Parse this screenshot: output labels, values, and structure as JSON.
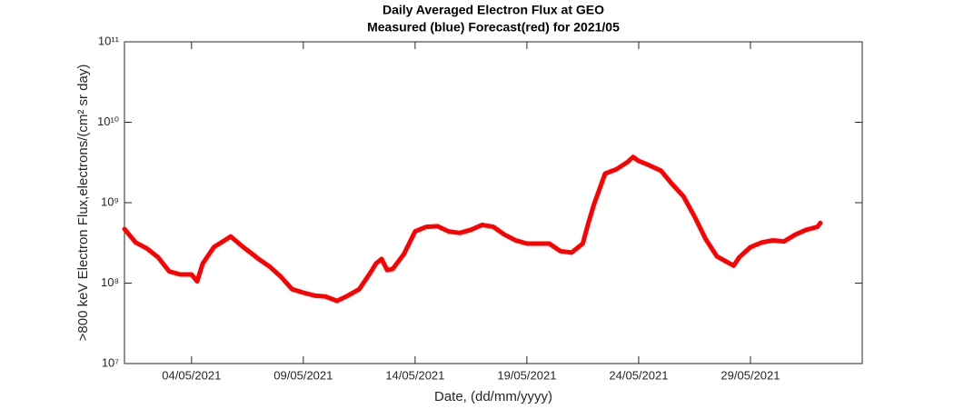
{
  "chart_data": {
    "type": "line",
    "title": "Daily Averaged Electron Flux at GEO",
    "subtitle": "Measured (blue) Forecast(red) for 2021/05",
    "x_label": "Date, (dd/mm/yyyy)",
    "y_label": ">800 keV Electron Flux,electrons/(cm² sr day)",
    "log_y": true,
    "grid": false,
    "color": "#ff0000",
    "xlim": [
      "2021-05-01T00:00",
      "2021-06-03T00:00"
    ],
    "xticks": [
      {
        "value": "2021-05-04T00:00",
        "label": "04/05/2021"
      },
      {
        "value": "2021-05-09T00:00",
        "label": "09/05/2021"
      },
      {
        "value": "2021-05-14T00:00",
        "label": "14/05/2021"
      },
      {
        "value": "2021-05-19T00:00",
        "label": "19/05/2021"
      },
      {
        "value": "2021-05-24T00:00",
        "label": "24/05/2021"
      },
      {
        "value": "2021-05-29T00:00",
        "label": "29/05/2021"
      }
    ],
    "ylim": [
      10000000,
      100000000000
    ],
    "yticks": [
      {
        "value": 10000000,
        "label": "10⁷"
      },
      {
        "value": 100000000,
        "label": "10⁸"
      },
      {
        "value": 1000000000,
        "label": "10⁹"
      },
      {
        "value": 10000000000,
        "label": "10¹⁰"
      },
      {
        "value": 100000000000,
        "label": "10¹¹"
      }
    ],
    "x": [
      "2021-05-01T00:00",
      "2021-05-01T12:00",
      "2021-05-02T00:00",
      "2021-05-02T12:00",
      "2021-05-03T00:00",
      "2021-05-03T12:00",
      "2021-05-04T00:00",
      "2021-05-04T06:00",
      "2021-05-04T12:00",
      "2021-05-05T00:00",
      "2021-05-05T18:00",
      "2021-05-06T06:00",
      "2021-05-07T00:00",
      "2021-05-07T12:00",
      "2021-05-08T00:00",
      "2021-05-08T12:00",
      "2021-05-09T00:00",
      "2021-05-09T12:00",
      "2021-05-10T00:00",
      "2021-05-10T12:00",
      "2021-05-11T00:00",
      "2021-05-11T12:00",
      "2021-05-12T00:00",
      "2021-05-12T06:00",
      "2021-05-12T12:00",
      "2021-05-12T18:00",
      "2021-05-13T00:00",
      "2021-05-13T12:00",
      "2021-05-14T00:00",
      "2021-05-14T12:00",
      "2021-05-15T00:00",
      "2021-05-15T12:00",
      "2021-05-16T00:00",
      "2021-05-16T12:00",
      "2021-05-17T00:00",
      "2021-05-17T12:00",
      "2021-05-18T00:00",
      "2021-05-18T12:00",
      "2021-05-19T00:00",
      "2021-05-19T12:00",
      "2021-05-20T00:00",
      "2021-05-20T12:00",
      "2021-05-21T00:00",
      "2021-05-21T12:00",
      "2021-05-21T18:00",
      "2021-05-22T00:00",
      "2021-05-22T12:00",
      "2021-05-23T00:00",
      "2021-05-23T12:00",
      "2021-05-23T18:00",
      "2021-05-24T00:00",
      "2021-05-24T12:00",
      "2021-05-25T00:00",
      "2021-05-25T12:00",
      "2021-05-26T00:00",
      "2021-05-26T12:00",
      "2021-05-27T00:00",
      "2021-05-27T12:00",
      "2021-05-28T00:00",
      "2021-05-28T06:00",
      "2021-05-28T12:00",
      "2021-05-29T00:00",
      "2021-05-29T12:00",
      "2021-05-30T00:00",
      "2021-05-30T12:00",
      "2021-05-31T00:00",
      "2021-05-31T12:00",
      "2021-06-01T00:00",
      "2021-06-01T03:00"
    ],
    "values": [
      470000000,
      320000000,
      270000000,
      210000000,
      140000000,
      128000000,
      128000000,
      105000000,
      175000000,
      280000000,
      380000000,
      290000000,
      200000000,
      160000000,
      120000000,
      84000000,
      76000000,
      70000000,
      68000000,
      60000000,
      70000000,
      84000000,
      135000000,
      175000000,
      200000000,
      145000000,
      150000000,
      230000000,
      440000000,
      500000000,
      510000000,
      440000000,
      420000000,
      460000000,
      530000000,
      500000000,
      400000000,
      340000000,
      310000000,
      310000000,
      310000000,
      250000000,
      240000000,
      310000000,
      560000000,
      950000000,
      2300000000,
      2600000000,
      3200000000,
      3700000000,
      3300000000,
      2900000000,
      2500000000,
      1700000000,
      1200000000,
      670000000,
      350000000,
      215000000,
      180000000,
      165000000,
      210000000,
      280000000,
      320000000,
      340000000,
      330000000,
      400000000,
      460000000,
      500000000,
      560000000
    ]
  }
}
